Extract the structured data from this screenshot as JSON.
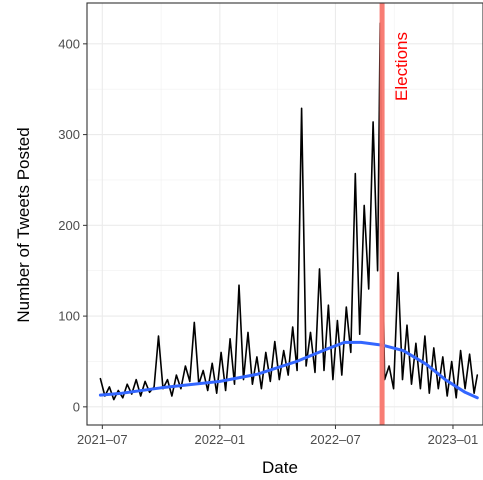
{
  "chart_data": {
    "type": "line",
    "xlabel": "Date",
    "ylabel": "Number of Tweets Posted",
    "x_ticks": [
      "2021–07",
      "2022–01",
      "2022–07",
      "2023–01"
    ],
    "x_tick_dates": [
      "2021-07-01",
      "2022-01-01",
      "2022-07-01",
      "2023-01-01"
    ],
    "y_ticks": [
      0,
      100,
      200,
      300,
      400
    ],
    "xlim": [
      "2021-06-07",
      "2023-02-17"
    ],
    "ylim": [
      -20,
      445
    ],
    "grid": true,
    "annotation": {
      "text": "Elections",
      "date": "2022-09-12",
      "color": "#f8766d"
    },
    "series": [
      {
        "color": "#000000",
        "points": [
          [
            "2021-06-28",
            31
          ],
          [
            "2021-07-05",
            12
          ],
          [
            "2021-07-12",
            22
          ],
          [
            "2021-07-19",
            8
          ],
          [
            "2021-07-26",
            18
          ],
          [
            "2021-08-02",
            10
          ],
          [
            "2021-08-09",
            25
          ],
          [
            "2021-08-16",
            14
          ],
          [
            "2021-08-23",
            30
          ],
          [
            "2021-08-30",
            12
          ],
          [
            "2021-09-06",
            28
          ],
          [
            "2021-09-13",
            16
          ],
          [
            "2021-09-20",
            22
          ],
          [
            "2021-09-27",
            78
          ],
          [
            "2021-10-04",
            20
          ],
          [
            "2021-10-11",
            30
          ],
          [
            "2021-10-18",
            12
          ],
          [
            "2021-10-25",
            35
          ],
          [
            "2021-11-01",
            20
          ],
          [
            "2021-11-08",
            45
          ],
          [
            "2021-11-15",
            28
          ],
          [
            "2021-11-22",
            93
          ],
          [
            "2021-11-29",
            25
          ],
          [
            "2021-12-06",
            40
          ],
          [
            "2021-12-13",
            18
          ],
          [
            "2021-12-20",
            48
          ],
          [
            "2021-12-27",
            15
          ],
          [
            "2022-01-03",
            60
          ],
          [
            "2022-01-10",
            18
          ],
          [
            "2022-01-17",
            75
          ],
          [
            "2022-01-24",
            25
          ],
          [
            "2022-01-31",
            134
          ],
          [
            "2022-02-07",
            30
          ],
          [
            "2022-02-14",
            82
          ],
          [
            "2022-02-21",
            25
          ],
          [
            "2022-02-28",
            55
          ],
          [
            "2022-03-07",
            20
          ],
          [
            "2022-03-14",
            60
          ],
          [
            "2022-03-21",
            28
          ],
          [
            "2022-03-28",
            72
          ],
          [
            "2022-04-04",
            30
          ],
          [
            "2022-04-11",
            62
          ],
          [
            "2022-04-18",
            35
          ],
          [
            "2022-04-25",
            88
          ],
          [
            "2022-05-02",
            40
          ],
          [
            "2022-05-09",
            329
          ],
          [
            "2022-05-16",
            45
          ],
          [
            "2022-05-23",
            82
          ],
          [
            "2022-05-30",
            38
          ],
          [
            "2022-06-06",
            152
          ],
          [
            "2022-06-13",
            40
          ],
          [
            "2022-06-20",
            112
          ],
          [
            "2022-06-27",
            30
          ],
          [
            "2022-07-04",
            95
          ],
          [
            "2022-07-11",
            35
          ],
          [
            "2022-07-18",
            110
          ],
          [
            "2022-07-25",
            60
          ],
          [
            "2022-08-01",
            257
          ],
          [
            "2022-08-08",
            80
          ],
          [
            "2022-08-15",
            222
          ],
          [
            "2022-08-22",
            130
          ],
          [
            "2022-08-29",
            314
          ],
          [
            "2022-09-05",
            150
          ],
          [
            "2022-09-09",
            423
          ],
          [
            "2022-09-12",
            210
          ],
          [
            "2022-09-16",
            30
          ],
          [
            "2022-09-23",
            45
          ],
          [
            "2022-09-30",
            20
          ],
          [
            "2022-10-07",
            148
          ],
          [
            "2022-10-14",
            30
          ],
          [
            "2022-10-21",
            90
          ],
          [
            "2022-10-28",
            25
          ],
          [
            "2022-11-04",
            70
          ],
          [
            "2022-11-11",
            20
          ],
          [
            "2022-11-18",
            78
          ],
          [
            "2022-11-25",
            15
          ],
          [
            "2022-12-02",
            65
          ],
          [
            "2022-12-09",
            20
          ],
          [
            "2022-12-16",
            55
          ],
          [
            "2022-12-23",
            12
          ],
          [
            "2022-12-30",
            50
          ],
          [
            "2023-01-06",
            10
          ],
          [
            "2023-01-13",
            62
          ],
          [
            "2023-01-20",
            20
          ],
          [
            "2023-01-27",
            58
          ],
          [
            "2023-02-03",
            15
          ],
          [
            "2023-02-08",
            35
          ]
        ]
      },
      {
        "color": "#3366ff",
        "points": [
          [
            "2021-06-28",
            13
          ],
          [
            "2021-08-01",
            15
          ],
          [
            "2021-10-01",
            21
          ],
          [
            "2022-01-01",
            28
          ],
          [
            "2022-03-01",
            36
          ],
          [
            "2022-05-01",
            50
          ],
          [
            "2022-06-15",
            63
          ],
          [
            "2022-07-15",
            71
          ],
          [
            "2022-08-10",
            71
          ],
          [
            "2022-09-12",
            68
          ],
          [
            "2022-10-15",
            62
          ],
          [
            "2022-11-20",
            47
          ],
          [
            "2022-12-20",
            30
          ],
          [
            "2023-01-20",
            16
          ],
          [
            "2023-02-08",
            10
          ]
        ]
      }
    ]
  }
}
